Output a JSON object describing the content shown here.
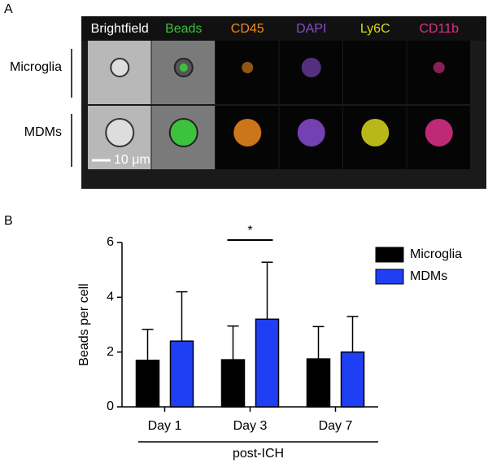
{
  "panel_a": {
    "label": "A",
    "channels": [
      {
        "name": "Brightfield",
        "color": "#ffffff"
      },
      {
        "name": "Beads",
        "color": "#3cc23c"
      },
      {
        "name": "CD45",
        "color": "#f08a1e"
      },
      {
        "name": "DAPI",
        "color": "#8a4bd0"
      },
      {
        "name": "Ly6C",
        "color": "#d8d820"
      },
      {
        "name": "CD11b",
        "color": "#e0308a"
      }
    ],
    "rows": [
      "Microglia",
      "MDMs"
    ],
    "scale_bar": "10 μm"
  },
  "chart_data": {
    "type": "bar",
    "panel_label": "B",
    "y_label": "Beads per cell",
    "x_label": "post-ICH",
    "categories": [
      "Day 1",
      "Day 3",
      "Day 7"
    ],
    "series": [
      {
        "name": "Microglia",
        "color": "#000000",
        "values": [
          1.7,
          1.72,
          1.75
        ],
        "errors": [
          1.13,
          1.23,
          1.18
        ]
      },
      {
        "name": "MDMs",
        "color": "#1f3ff5",
        "values": [
          2.4,
          3.2,
          2.0
        ],
        "errors": [
          1.8,
          2.08,
          1.3
        ]
      }
    ],
    "ylim": [
      0,
      6
    ],
    "yticks": [
      0,
      2,
      4,
      6
    ],
    "significance": "*",
    "legend": "upper right"
  }
}
